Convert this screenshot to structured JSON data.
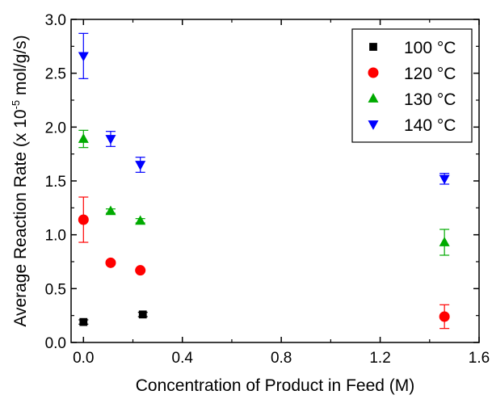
{
  "chart_data": {
    "type": "scatter",
    "xlabel": "Concentration of Product in Feed (M)",
    "ylabel_prefix": "Average Reaction Rate (x 10",
    "ylabel_exponent": "-5",
    "ylabel_suffix": " mol/g/s)",
    "xlim": [
      -0.05,
      1.6
    ],
    "ylim": [
      0.0,
      3.0
    ],
    "x_ticks": [
      0.0,
      0.4,
      0.8,
      1.2,
      1.6
    ],
    "x_tick_labels": [
      "0.0",
      "0.4",
      "0.8",
      "1.2",
      "1.6"
    ],
    "y_ticks": [
      0.0,
      0.5,
      1.0,
      1.5,
      2.0,
      2.5,
      3.0
    ],
    "y_tick_labels": [
      "0.0",
      "0.5",
      "1.0",
      "1.5",
      "2.0",
      "2.5",
      "3.0"
    ],
    "grid": false,
    "legend_position": "top-right",
    "series": [
      {
        "name": "100 °C",
        "color": "#000000",
        "marker": "square",
        "points": [
          {
            "x": 0.0,
            "y": 0.19,
            "err": 0.02
          },
          {
            "x": 0.24,
            "y": 0.26,
            "err": 0.02
          }
        ]
      },
      {
        "name": "120 °C",
        "color": "#ff0000",
        "marker": "circle",
        "points": [
          {
            "x": 0.0,
            "y": 1.14,
            "err": 0.21
          },
          {
            "x": 0.11,
            "y": 0.74,
            "err": 0.0
          },
          {
            "x": 0.23,
            "y": 0.67,
            "err": 0.0
          },
          {
            "x": 1.46,
            "y": 0.24,
            "err": 0.11
          }
        ]
      },
      {
        "name": "130 °C",
        "color": "#00aa00",
        "marker": "triangle-up",
        "points": [
          {
            "x": 0.0,
            "y": 1.89,
            "err": 0.08
          },
          {
            "x": 0.11,
            "y": 1.22,
            "err": 0.02
          },
          {
            "x": 0.23,
            "y": 1.13,
            "err": 0.02
          },
          {
            "x": 1.46,
            "y": 0.93,
            "err": 0.12
          }
        ]
      },
      {
        "name": "140 °C",
        "color": "#0000ff",
        "marker": "triangle-down",
        "points": [
          {
            "x": 0.0,
            "y": 2.66,
            "err": 0.21
          },
          {
            "x": 0.11,
            "y": 1.89,
            "err": 0.07
          },
          {
            "x": 0.23,
            "y": 1.65,
            "err": 0.07
          },
          {
            "x": 1.46,
            "y": 1.52,
            "err": 0.05
          }
        ]
      }
    ]
  }
}
